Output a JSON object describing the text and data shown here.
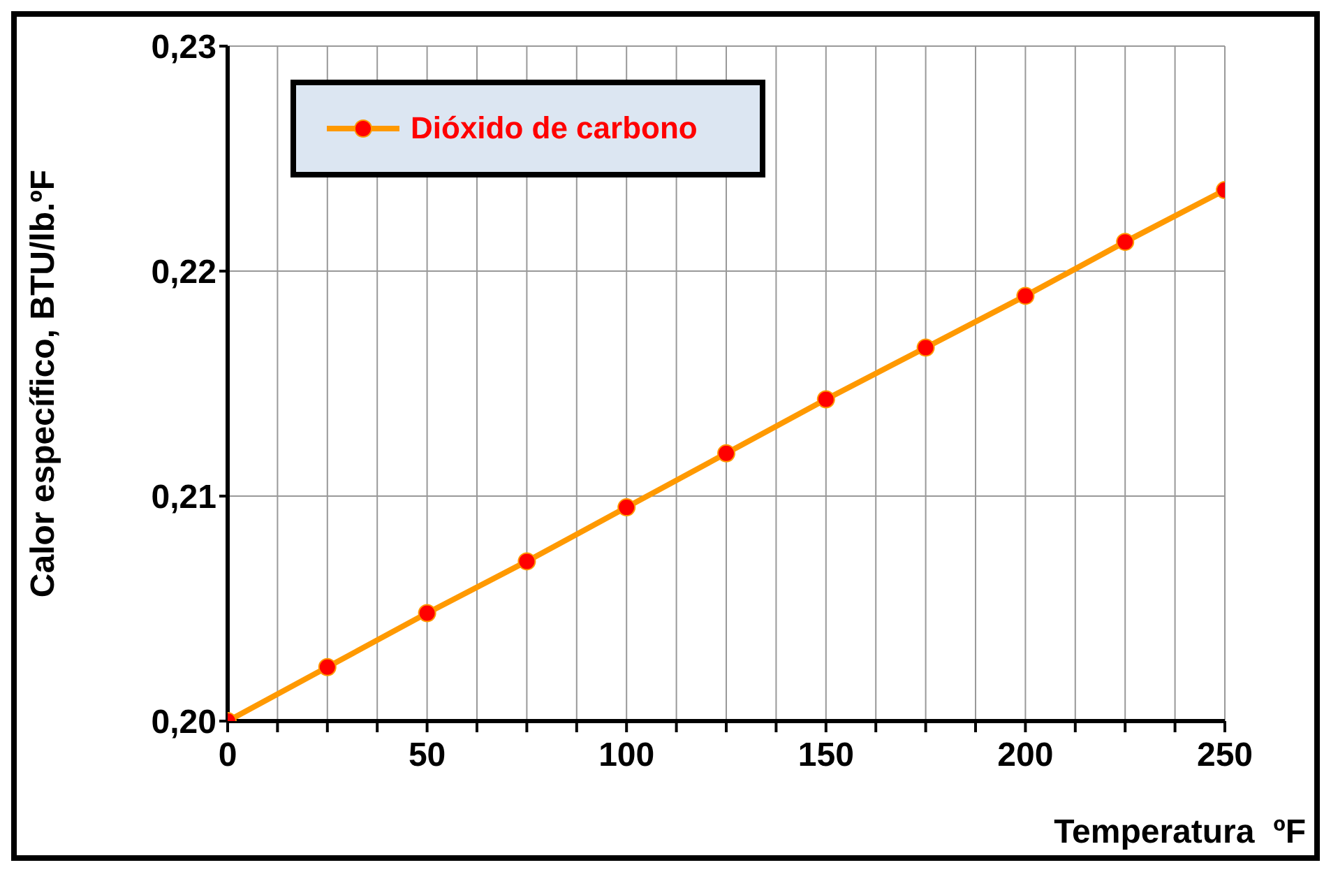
{
  "chart_data": {
    "type": "line",
    "xlabel": "Temperatura  ºF",
    "ylabel": "Calor específico, BTU/lb.ºF",
    "x": [
      0,
      25,
      50,
      75,
      100,
      125,
      150,
      175,
      200,
      225,
      250
    ],
    "series": [
      {
        "name": "Dióxido de carbono",
        "color": "#ff9900",
        "values": [
          0.2,
          0.2024,
          0.2048,
          0.2071,
          0.2095,
          0.2119,
          0.2143,
          0.2166,
          0.2189,
          0.2213,
          0.2236
        ]
      }
    ],
    "xlim": [
      0,
      250
    ],
    "xticks": [
      0,
      {
        "value": 12.5,
        "label": null
      },
      {
        "value": 25,
        "label": null
      },
      {
        "value": 37.5,
        "label": null
      },
      50,
      {
        "value": 62.5,
        "label": null
      },
      {
        "value": 75,
        "label": null
      },
      {
        "value": 87.5,
        "label": null
      },
      100,
      {
        "value": 112.5,
        "label": null
      },
      {
        "value": 125,
        "label": null
      },
      {
        "value": 137.5,
        "label": null
      },
      150,
      {
        "value": 162.5,
        "label": null
      },
      {
        "value": 175,
        "label": null
      },
      {
        "value": 187.5,
        "label": null
      },
      200,
      {
        "value": 212.5,
        "label": null
      },
      {
        "value": 225,
        "label": null
      },
      {
        "value": 237.5,
        "label": null
      },
      250
    ],
    "ylim": [
      0.2,
      0.23
    ],
    "yticks": [
      {
        "value": 0.2,
        "label": "0,20"
      },
      {
        "value": 0.21,
        "label": "0,21"
      },
      {
        "value": 0.22,
        "label": "0,22"
      },
      {
        "value": 0.23,
        "label": "0,23"
      }
    ],
    "grid": true,
    "legend": "top left",
    "marker": "circle",
    "line_style": "solid"
  }
}
